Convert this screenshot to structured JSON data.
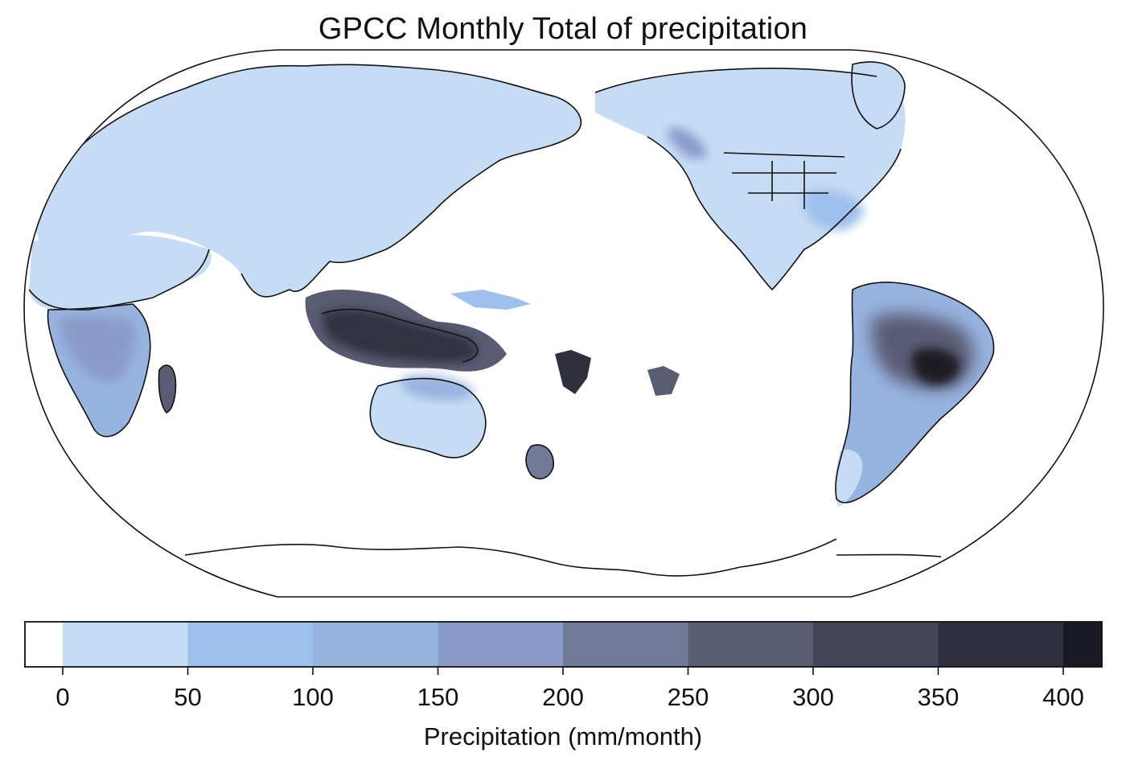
{
  "map": {
    "title": "GPCC Monthly Total of precipitation",
    "projection": "robinson",
    "central_longitude": 180,
    "ocean_color": "#ffffff",
    "coastline_color": "#111111",
    "colorbar": {
      "label": "Precipitation (mm/month)",
      "tick_labels": [
        "0",
        "50",
        "100",
        "150",
        "200",
        "250",
        "300",
        "350",
        "400"
      ],
      "tick_values": [
        0,
        50,
        100,
        150,
        200,
        250,
        300,
        350,
        400
      ],
      "extend": "both",
      "levels": [
        {
          "from": null,
          "to": 0,
          "color": "#ffffff"
        },
        {
          "from": 0,
          "to": 50,
          "color": "#c6dcf4"
        },
        {
          "from": 50,
          "to": 100,
          "color": "#9dc0ec"
        },
        {
          "from": 100,
          "to": 150,
          "color": "#97b3e0"
        },
        {
          "from": 150,
          "to": 200,
          "color": "#8a9bca"
        },
        {
          "from": 200,
          "to": 250,
          "color": "#717a97"
        },
        {
          "from": 250,
          "to": 300,
          "color": "#5a5c74"
        },
        {
          "from": 300,
          "to": 350,
          "color": "#454559"
        },
        {
          "from": 350,
          "to": 400,
          "color": "#30303f"
        },
        {
          "from": 400,
          "to": null,
          "color": "#1a1a24"
        }
      ]
    },
    "regions": [
      {
        "name": "Eurasia",
        "class": "0-50"
      },
      {
        "name": "North America",
        "class": "0-50"
      },
      {
        "name": "Northern Africa",
        "class": "0-50"
      },
      {
        "name": "Southern Africa",
        "class": "100-200"
      },
      {
        "name": "Madagascar",
        "class": "250-350"
      },
      {
        "name": "Maritime Continent",
        "class": "300-400"
      },
      {
        "name": "Australia",
        "class": "0-50"
      },
      {
        "name": "New Zealand",
        "class": "200-300"
      },
      {
        "name": "South America",
        "class": "50-150"
      },
      {
        "name": "Central Brazil",
        "class": ">400"
      },
      {
        "name": "Antarctica",
        "class": "<0"
      }
    ]
  }
}
